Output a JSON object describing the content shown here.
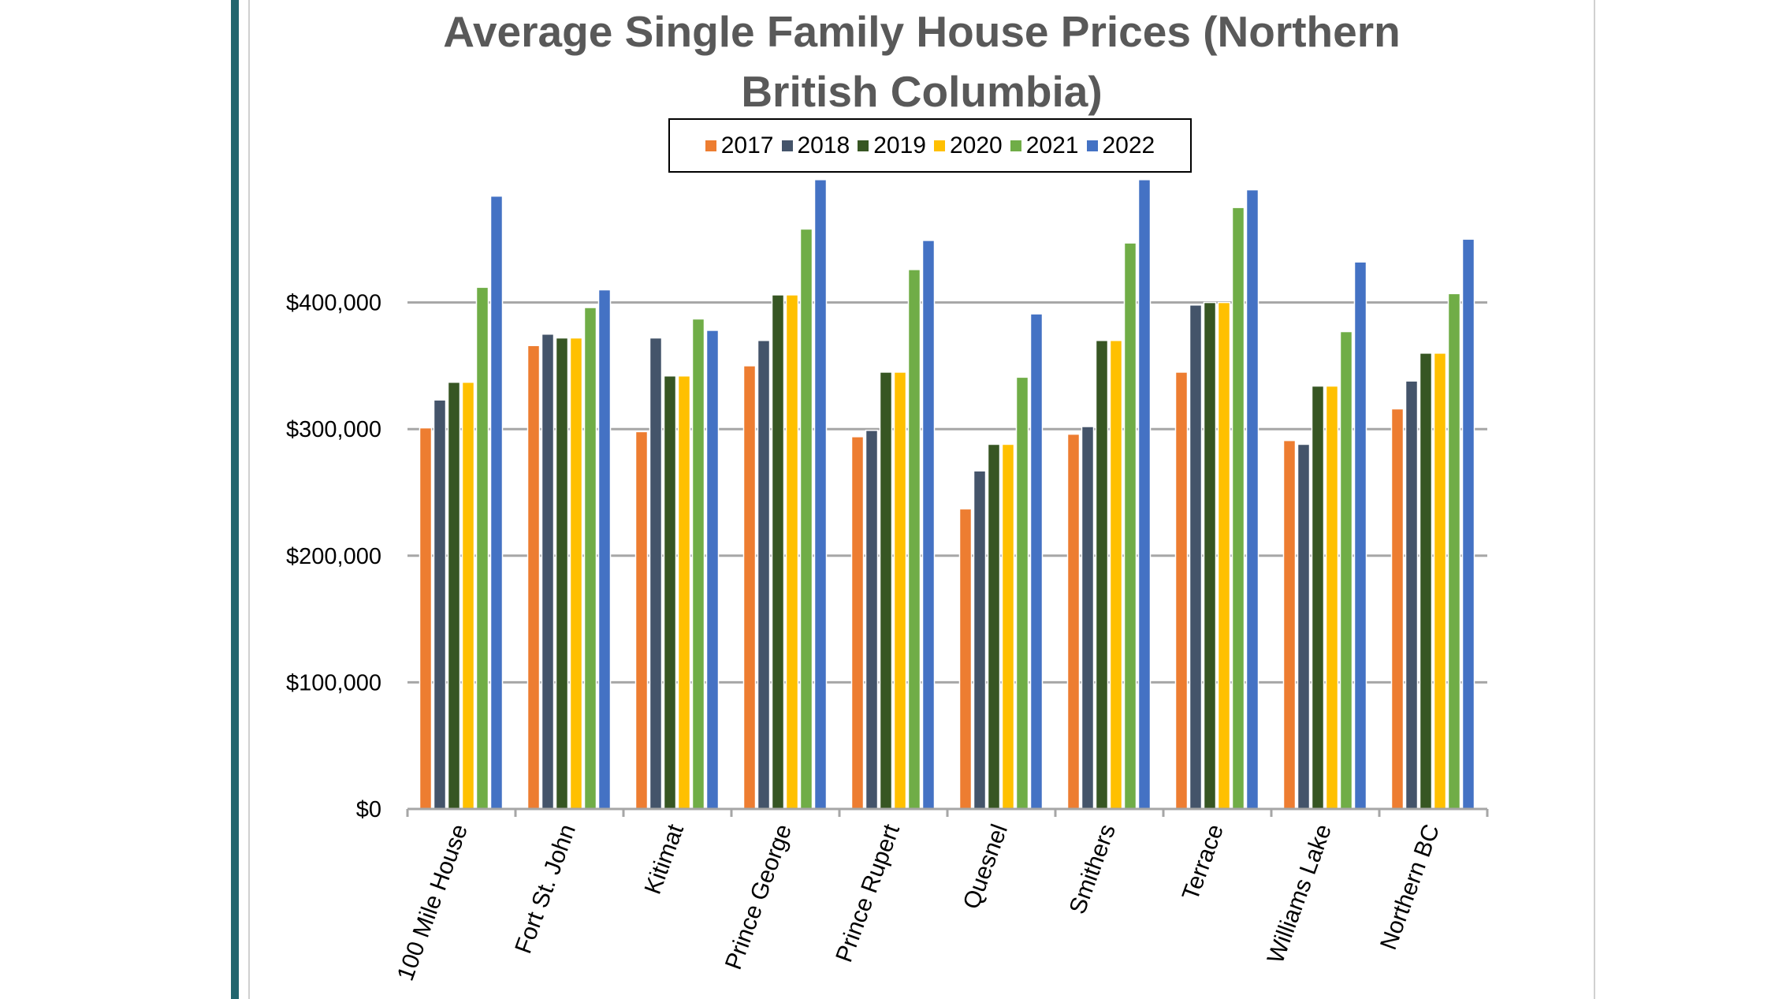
{
  "chart_data": {
    "type": "bar",
    "title": "Average Single Family House Prices (Northern British Columbia)",
    "title_lines": [
      "Average Single Family House Prices (Northern",
      "British Columbia)"
    ],
    "xlabel": "",
    "ylabel": "",
    "ylim": [
      0,
      500000
    ],
    "yticks": [
      0,
      100000,
      200000,
      300000,
      400000
    ],
    "ytick_labels": [
      "$0",
      "$100,000",
      "$200,000",
      "$300,000",
      "$400,000"
    ],
    "grid": true,
    "legend_position": "top",
    "categories": [
      "100 Mile House",
      "Fort St. John",
      "Kitimat",
      "Prince George",
      "Prince Rupert",
      "Quesnel",
      "Smithers",
      "Terrace",
      "Williams Lake",
      "Northern BC"
    ],
    "series": [
      {
        "name": "2017",
        "color": "#ed7d31",
        "values": [
          301000,
          366000,
          298000,
          350000,
          294000,
          237000,
          296000,
          345000,
          291000,
          316000
        ]
      },
      {
        "name": "2018",
        "color": "#44546a",
        "values": [
          323000,
          375000,
          372000,
          370000,
          299000,
          267000,
          302000,
          398000,
          288000,
          338000
        ]
      },
      {
        "name": "2019",
        "color": "#375623",
        "values": [
          337000,
          372000,
          342000,
          406000,
          345000,
          288000,
          370000,
          400000,
          334000,
          360000
        ]
      },
      {
        "name": "2020",
        "color": "#ffc000",
        "values": [
          337000,
          372000,
          342000,
          406000,
          345000,
          288000,
          370000,
          400000,
          334000,
          360000
        ]
      },
      {
        "name": "2021",
        "color": "#70ad47",
        "values": [
          412000,
          396000,
          387000,
          458000,
          426000,
          341000,
          447000,
          475000,
          377000,
          407000
        ]
      },
      {
        "name": "2022",
        "color": "#4472c4",
        "values": [
          484000,
          410000,
          378000,
          497000,
          449000,
          391000,
          497000,
          489000,
          432000,
          450000
        ]
      }
    ]
  }
}
